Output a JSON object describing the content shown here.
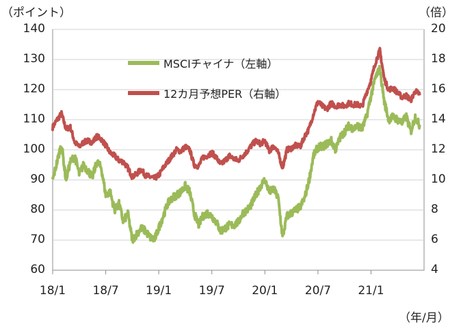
{
  "chart_data": {
    "type": "line",
    "left_axis_unit": "（ポイント）",
    "right_axis_unit": "（倍）",
    "x_axis_unit": "（年/月）",
    "y_left": {
      "min": 60,
      "max": 140,
      "ticks": [
        "60",
        "70",
        "80",
        "90",
        "100",
        "110",
        "120",
        "130",
        "140"
      ]
    },
    "y_right": {
      "min": 4,
      "max": 20,
      "ticks": [
        "4",
        "6",
        "8",
        "10",
        "12",
        "14",
        "16",
        "18",
        "20"
      ]
    },
    "x_ticks": [
      "18/1",
      "18/7",
      "19/1",
      "19/7",
      "20/1",
      "20/7",
      "21/1"
    ],
    "series": [
      {
        "name": "MSCIチャイナ（左軸）",
        "axis": "left",
        "color": "#9bbb59",
        "points": [
          [
            "18/1",
            90
          ],
          [
            "18/1.5",
            96
          ],
          [
            "18/2",
            102
          ],
          [
            "18/2.5",
            90
          ],
          [
            "18/3",
            96
          ],
          [
            "18/3.5",
            98
          ],
          [
            "18/4",
            92
          ],
          [
            "18/4.5",
            95
          ],
          [
            "18/5",
            93
          ],
          [
            "18/5.5",
            91
          ],
          [
            "18/6",
            96
          ],
          [
            "18/6.5",
            94
          ],
          [
            "18/7",
            85
          ],
          [
            "18/7.5",
            86
          ],
          [
            "18/8",
            80
          ],
          [
            "18/8.5",
            82
          ],
          [
            "18/9",
            76
          ],
          [
            "18/9.5",
            79
          ],
          [
            "18/10",
            70
          ],
          [
            "18/10.5",
            72
          ],
          [
            "18/11",
            74
          ],
          [
            "18/11.5",
            73
          ],
          [
            "18/12",
            71
          ],
          [
            "18/12.5",
            70
          ],
          [
            "19/1",
            74
          ],
          [
            "19/1.5",
            78
          ],
          [
            "19/2",
            82
          ],
          [
            "19/2.5",
            84
          ],
          [
            "19/3",
            85
          ],
          [
            "19/3.5",
            86
          ],
          [
            "19/4",
            88
          ],
          [
            "19/4.5",
            86
          ],
          [
            "19/5",
            79
          ],
          [
            "19/5.5",
            75
          ],
          [
            "19/6",
            78
          ],
          [
            "19/6.5",
            79
          ],
          [
            "19/7",
            78
          ],
          [
            "19/7.5",
            76
          ],
          [
            "19/8",
            73
          ],
          [
            "19/8.5",
            74
          ],
          [
            "19/9",
            75
          ],
          [
            "19/9.5",
            75
          ],
          [
            "19/10",
            76
          ],
          [
            "19/10.5",
            79
          ],
          [
            "19/11",
            80
          ],
          [
            "19/11.5",
            82
          ],
          [
            "19/12",
            85
          ],
          [
            "19/12.5",
            88
          ],
          [
            "20/1",
            90
          ],
          [
            "20/1.5",
            86
          ],
          [
            "20/2",
            87
          ],
          [
            "20/2.5",
            84
          ],
          [
            "20/3",
            71
          ],
          [
            "20/3.5",
            78
          ],
          [
            "20/4",
            79
          ],
          [
            "20/4.5",
            80
          ],
          [
            "20/5",
            81
          ],
          [
            "20/5.5",
            84
          ],
          [
            "20/6",
            90
          ],
          [
            "20/6.5",
            98
          ],
          [
            "20/7",
            101
          ],
          [
            "20/7.5",
            101
          ],
          [
            "20/8",
            102
          ],
          [
            "20/8.5",
            103
          ],
          [
            "20/9",
            100
          ],
          [
            "20/9.5",
            104
          ],
          [
            "20/10",
            106
          ],
          [
            "20/10.5",
            108
          ],
          [
            "20/11",
            107
          ],
          [
            "20/11.5",
            108
          ],
          [
            "20/12",
            107
          ],
          [
            "20/12.5",
            111
          ],
          [
            "21/1",
            118
          ],
          [
            "21/1.5",
            124
          ],
          [
            "21/2",
            127
          ],
          [
            "21/2.5",
            116
          ],
          [
            "21/3",
            110
          ],
          [
            "21/3.5",
            111
          ],
          [
            "21/4",
            110
          ],
          [
            "21/4.5",
            109
          ],
          [
            "21/5",
            111
          ],
          [
            "21/5.5",
            106
          ],
          [
            "21/6",
            111
          ],
          [
            "21/6.5",
            108
          ]
        ]
      },
      {
        "name": "12カ月予想PER（右軸）",
        "axis": "right",
        "color": "#c0504d",
        "points": [
          [
            "18/1",
            13.5
          ],
          [
            "18/1.5",
            14.0
          ],
          [
            "18/2",
            14.4
          ],
          [
            "18/2.5",
            13.4
          ],
          [
            "18/3",
            13.5
          ],
          [
            "18/3.5",
            12.5
          ],
          [
            "18/4",
            12.2
          ],
          [
            "18/4.5",
            12.5
          ],
          [
            "18/5",
            12.6
          ],
          [
            "18/5.5",
            12.5
          ],
          [
            "18/6",
            12.9
          ],
          [
            "18/6.5",
            12.7
          ],
          [
            "18/7",
            12.3
          ],
          [
            "18/7.5",
            11.8
          ],
          [
            "18/8",
            11.6
          ],
          [
            "18/8.5",
            11.3
          ],
          [
            "18/9",
            11.2
          ],
          [
            "18/9.5",
            10.8
          ],
          [
            "18/10",
            10.2
          ],
          [
            "18/10.5",
            10.4
          ],
          [
            "18/11",
            10.7
          ],
          [
            "18/11.5",
            10.3
          ],
          [
            "18/12",
            10.2
          ],
          [
            "18/12.5",
            10.1
          ],
          [
            "19/1",
            10.3
          ],
          [
            "19/1.5",
            10.8
          ],
          [
            "19/2",
            11.2
          ],
          [
            "19/2.5",
            11.6
          ],
          [
            "19/3",
            12.0
          ],
          [
            "19/3.5",
            11.9
          ],
          [
            "19/4",
            12.2
          ],
          [
            "19/4.5",
            12.0
          ],
          [
            "19/5",
            11.0
          ],
          [
            "19/5.5",
            10.9
          ],
          [
            "19/6",
            11.5
          ],
          [
            "19/6.5",
            11.6
          ],
          [
            "19/7",
            11.8
          ],
          [
            "19/7.5",
            11.5
          ],
          [
            "19/8",
            11.0
          ],
          [
            "19/8.5",
            11.3
          ],
          [
            "19/9",
            11.6
          ],
          [
            "19/9.5",
            11.4
          ],
          [
            "19/10",
            11.3
          ],
          [
            "19/10.5",
            11.6
          ],
          [
            "19/11",
            11.9
          ],
          [
            "19/11.5",
            12.3
          ],
          [
            "19/12",
            12.6
          ],
          [
            "19/12.5",
            12.4
          ],
          [
            "20/1",
            12.6
          ],
          [
            "20/1.5",
            11.9
          ],
          [
            "20/2",
            12.3
          ],
          [
            "20/2.5",
            11.8
          ],
          [
            "20/3",
            10.8
          ],
          [
            "20/3.5",
            12.0
          ],
          [
            "20/4",
            12.1
          ],
          [
            "20/4.5",
            12.3
          ],
          [
            "20/5",
            12.2
          ],
          [
            "20/5.5",
            12.9
          ],
          [
            "20/6",
            13.4
          ],
          [
            "20/6.5",
            14.4
          ],
          [
            "20/7",
            15.2
          ],
          [
            "20/7.5",
            14.9
          ],
          [
            "20/8",
            14.7
          ],
          [
            "20/8.5",
            15.1
          ],
          [
            "20/9",
            14.9
          ],
          [
            "20/9.5",
            15.0
          ],
          [
            "20/10",
            14.9
          ],
          [
            "20/10.5",
            15.1
          ],
          [
            "20/11",
            15.0
          ],
          [
            "20/11.5",
            15.0
          ],
          [
            "20/12",
            14.9
          ],
          [
            "20/12.5",
            15.8
          ],
          [
            "21/1",
            16.6
          ],
          [
            "21/1.5",
            17.8
          ],
          [
            "21/2",
            18.6
          ],
          [
            "21/2.5",
            16.7
          ],
          [
            "21/3",
            16.0
          ],
          [
            "21/3.5",
            16.1
          ],
          [
            "21/4",
            15.8
          ],
          [
            "21/4.5",
            15.5
          ],
          [
            "21/5",
            15.6
          ],
          [
            "21/5.5",
            15.3
          ],
          [
            "21/6",
            15.9
          ],
          [
            "21/6.5",
            15.7
          ]
        ]
      }
    ]
  }
}
